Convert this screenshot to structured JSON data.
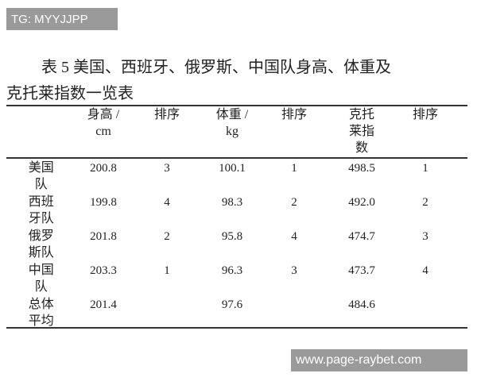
{
  "watermarks": {
    "top_left": "TG: MYYJJPP",
    "bottom_right": "www.page-raybet.com"
  },
  "title": {
    "line1": "表 5  美国、西班牙、俄罗斯、中国队身高、体重及",
    "line2": "克托莱指数一览表"
  },
  "table": {
    "headers": [
      "",
      "身高 / cm",
      "排序",
      "体重 / kg",
      "排序",
      "克托莱指数",
      "排序"
    ],
    "header_lines": [
      [],
      [
        "身高 /",
        "cm"
      ],
      [
        "排序"
      ],
      [
        "体重 /",
        "kg"
      ],
      [
        "排序"
      ],
      [
        "克托",
        "莱指",
        "数"
      ],
      [
        "排序"
      ]
    ],
    "rows": [
      {
        "label_lines": [
          "美国",
          "队"
        ],
        "label": "美国队",
        "values": [
          "200.8",
          "3",
          "100.1",
          "1",
          "498.5",
          "1"
        ]
      },
      {
        "label_lines": [
          "西班",
          "牙队"
        ],
        "label": "西班牙队",
        "values": [
          "199.8",
          "4",
          "98.3",
          "2",
          "492.0",
          "2"
        ]
      },
      {
        "label_lines": [
          "俄罗",
          "斯队"
        ],
        "label": "俄罗斯队",
        "values": [
          "201.8",
          "2",
          "95.8",
          "4",
          "474.7",
          "3"
        ]
      },
      {
        "label_lines": [
          "中国",
          "队"
        ],
        "label": "中国队",
        "values": [
          "203.3",
          "1",
          "96.3",
          "3",
          "473.7",
          "4"
        ]
      },
      {
        "label_lines": [
          "总体",
          "平均"
        ],
        "label": "总体平均",
        "values": [
          "201.4",
          "",
          "97.6",
          "",
          "484.6",
          ""
        ]
      }
    ]
  }
}
